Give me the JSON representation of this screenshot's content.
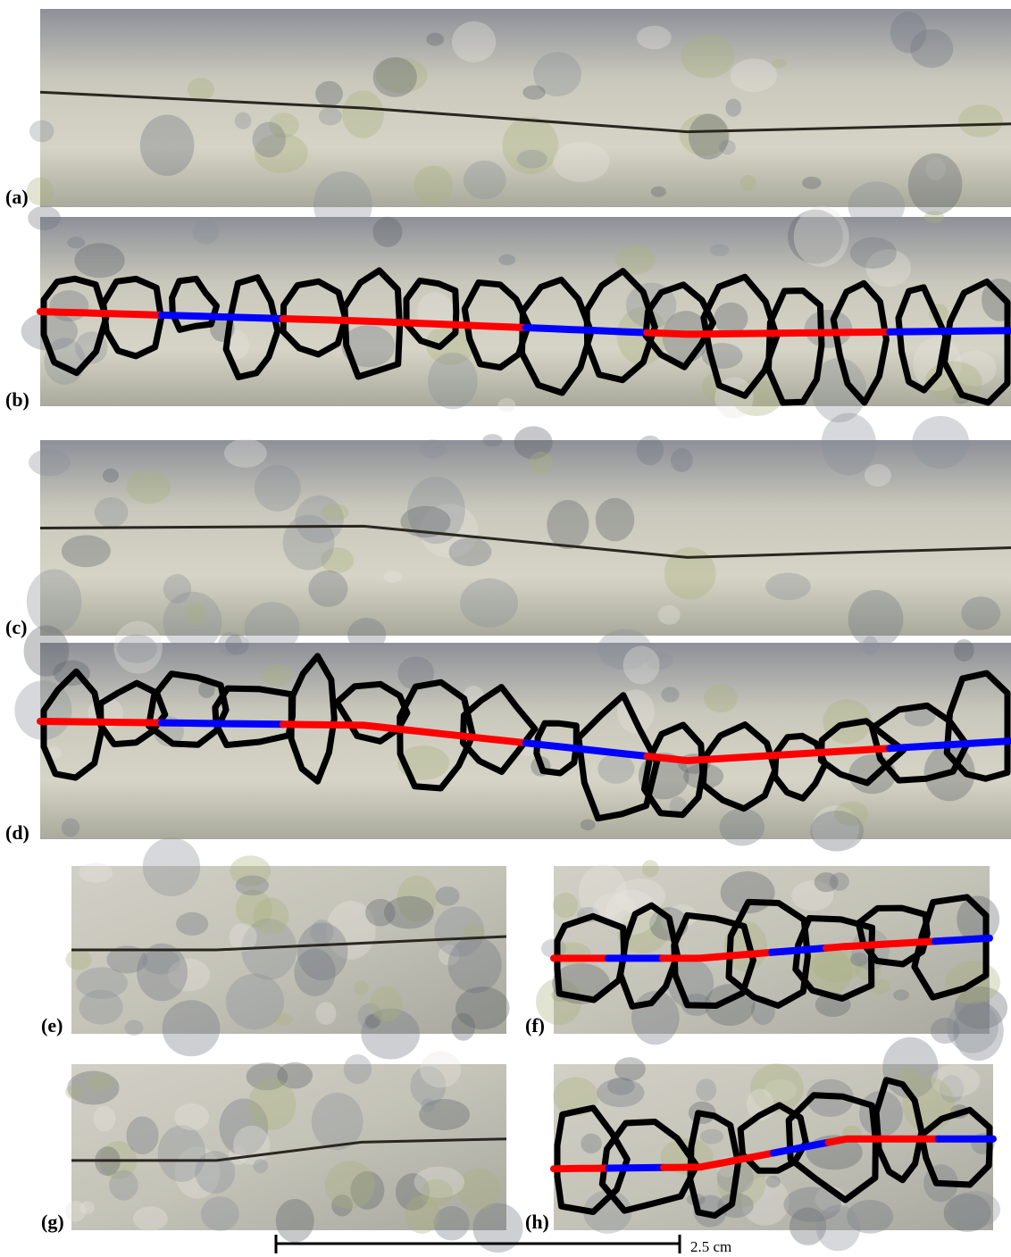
{
  "panels": [
    {
      "label": "(a)"
    },
    {
      "label": "(b)"
    },
    {
      "label": "(c)"
    },
    {
      "label": "(d)"
    },
    {
      "label": "(e)"
    },
    {
      "label": "(f)"
    },
    {
      "label": "(g)"
    },
    {
      "label": "(h)"
    }
  ],
  "scale_bar": {
    "label": "2.5 cm"
  }
}
